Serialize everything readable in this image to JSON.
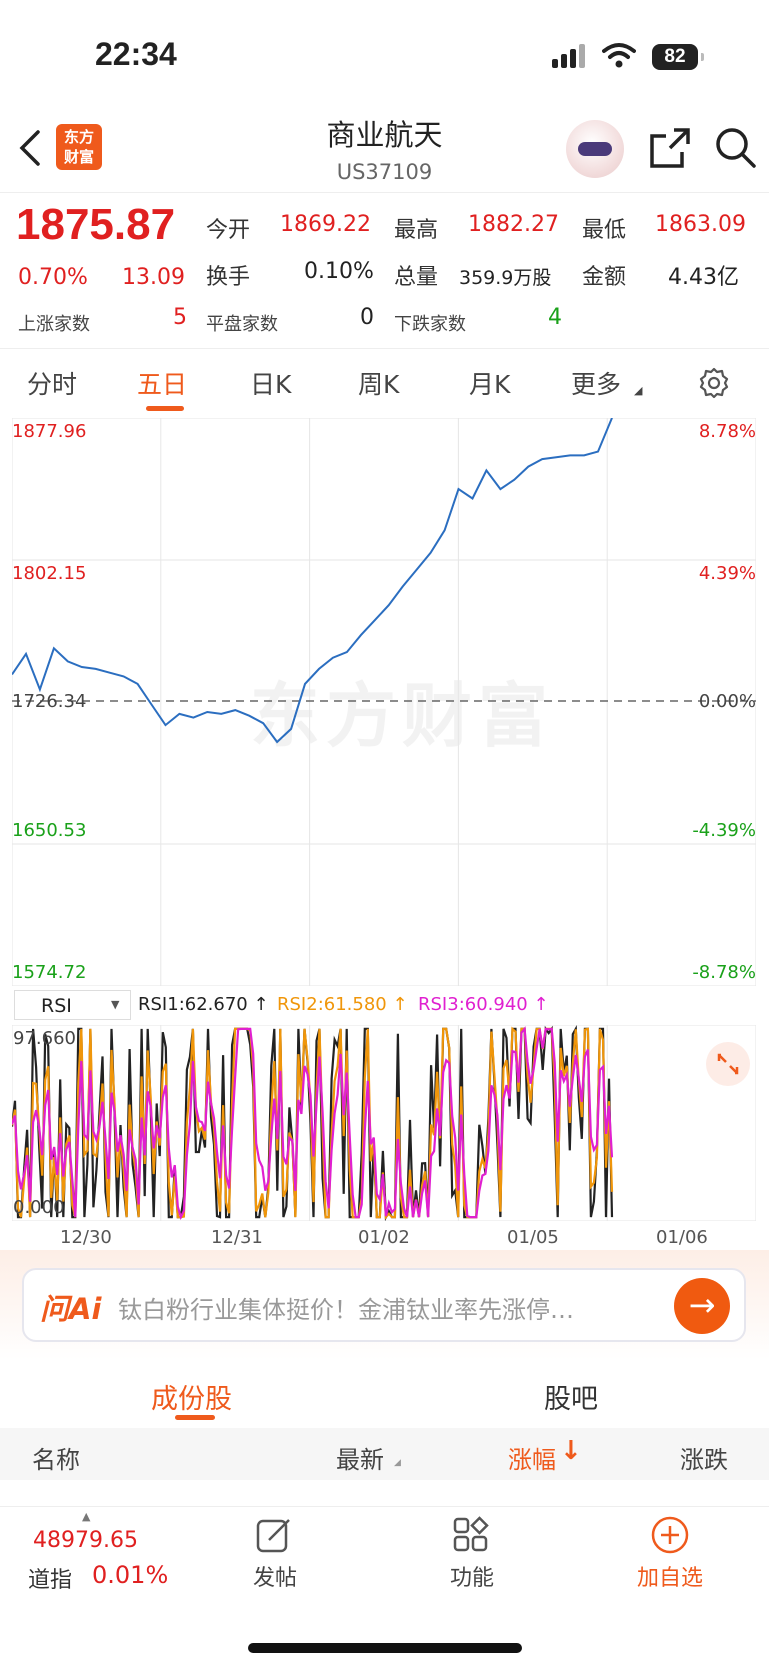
{
  "status": {
    "time": "22:34",
    "battery": "82"
  },
  "header": {
    "title": "商业航天",
    "code": "US37109",
    "logo": "东方\n财富"
  },
  "quote": {
    "price": "1875.87",
    "change_pct": "0.70%",
    "change": "13.09",
    "open_label": "今开",
    "open": "1869.22",
    "high_label": "最高",
    "high": "1882.27",
    "low_label": "最低",
    "low": "1863.09",
    "turnover_label": "换手",
    "turnover": "0.10%",
    "volume_label": "总量",
    "volume": "359.9万股",
    "amount_label": "金额",
    "amount": "4.43亿",
    "up_label": "上涨家数",
    "up": "5",
    "flat_label": "平盘家数",
    "flat": "0",
    "down_label": "下跌家数",
    "down": "4"
  },
  "tabs": [
    "分时",
    "五日",
    "日K",
    "周K",
    "月K",
    "更多"
  ],
  "active_tab": "五日",
  "chart_data": {
    "type": "line",
    "title": "",
    "xlabel": "",
    "ylabel": "",
    "x_ticks": [
      "12/30",
      "12/31",
      "01/02",
      "01/05",
      "01/06"
    ],
    "y_ticks_left": [
      "1877.96",
      "1802.15",
      "1726.34",
      "1650.53",
      "1574.72"
    ],
    "y_ticks_right": [
      "8.78%",
      "4.39%",
      "0.00%",
      "-4.39%",
      "-8.78%"
    ],
    "ylim": [
      1574.72,
      1877.96
    ],
    "base": 1726.34,
    "series": [
      {
        "values": [
          1741,
          1752,
          1733,
          1755,
          1748,
          1745,
          1744,
          1742,
          1740,
          1736,
          1725,
          1714,
          1720,
          1718,
          1721,
          1720,
          1722,
          1719,
          1715,
          1705,
          1712,
          1736,
          1744,
          1750,
          1753,
          1762,
          1770,
          1778,
          1788,
          1797,
          1806,
          1818,
          1840,
          1835,
          1850,
          1840,
          1845,
          1852,
          1856,
          1857,
          1858,
          1858,
          1860,
          1878
        ]
      }
    ],
    "line_color": "#2b6ec0",
    "rsi": {
      "select": "RSI",
      "label1": "RSI1:62.670 ↑",
      "label2": "RSI2:61.580 ↑",
      "label3": "RSI3:60.940 ↑",
      "color1": "#222222",
      "color2": "#f0960a",
      "color3": "#e020d0",
      "y_top": "97.660",
      "y_bottom": "0.000"
    }
  },
  "ai": {
    "logo": "问Ai",
    "text": "钛白粉行业集体挺价！金浦钛业率先涨停…"
  },
  "sub_tabs": [
    "成份股",
    "股吧"
  ],
  "table_headers": [
    "名称",
    "最新",
    "涨幅",
    "涨跌"
  ],
  "bottom_nav": {
    "index_value": "48979.65",
    "index_name": "道指",
    "index_pct": "0.01%",
    "post": "发帖",
    "func": "功能",
    "add": "加自选"
  },
  "watermark": "东方财富"
}
